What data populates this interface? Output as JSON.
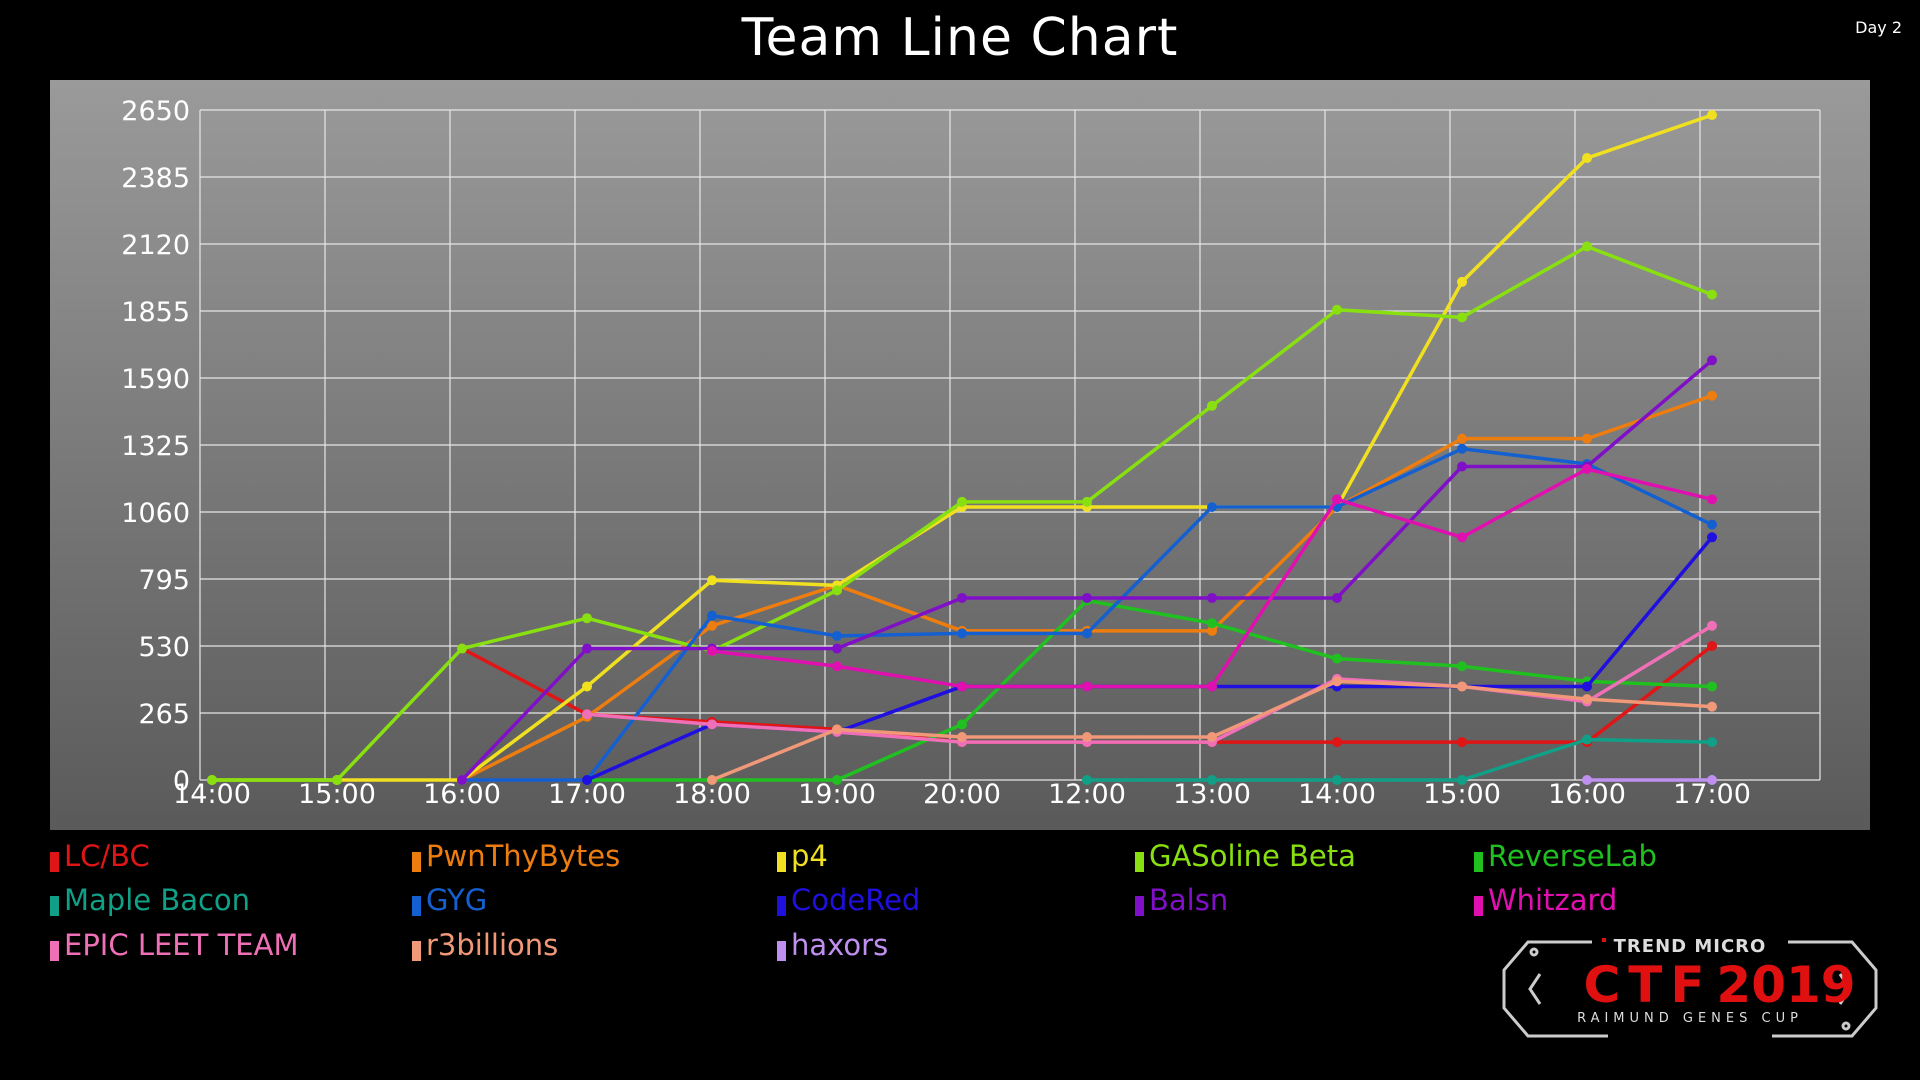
{
  "header": {
    "title": "Team Line Chart",
    "day": "Day 2"
  },
  "logo": {
    "brand": "TREND MICRO",
    "ctf": "CTF",
    "year": "2019",
    "cup": "RAIMUND GENES CUP",
    "colors": {
      "ctf": "#e01010",
      "frame": "#cccccc"
    }
  },
  "chart_data": {
    "type": "line",
    "title": "Team Line Chart",
    "xlabel": "",
    "ylabel": "",
    "categories": [
      "14:00",
      "15:00",
      "16:00",
      "17:00",
      "18:00",
      "19:00",
      "20:00",
      "12:00",
      "13:00",
      "14:00",
      "15:00",
      "16:00",
      "17:00"
    ],
    "yticks": [
      0,
      265,
      530,
      795,
      1060,
      1325,
      1590,
      1855,
      2120,
      2385,
      2650
    ],
    "ylim": [
      0,
      2650
    ],
    "grid": true,
    "legend": "bottom",
    "series": [
      {
        "name": "LC/BC",
        "color": "#e01515",
        "values": [
          null,
          null,
          520,
          260,
          230,
          200,
          150,
          150,
          150,
          150,
          150,
          150,
          530
        ]
      },
      {
        "name": "PwnThyBytes",
        "color": "#ee7d10",
        "values": [
          null,
          null,
          0,
          250,
          610,
          770,
          590,
          590,
          590,
          1080,
          1350,
          1350,
          1520
        ]
      },
      {
        "name": "p4",
        "color": "#f0e020",
        "values": [
          0,
          0,
          0,
          370,
          790,
          770,
          1080,
          1080,
          1080,
          1080,
          1970,
          2460,
          2630
        ]
      },
      {
        "name": "GASoline Beta",
        "color": "#88e010",
        "values": [
          0,
          0,
          520,
          640,
          510,
          750,
          1100,
          1100,
          1480,
          1860,
          1830,
          2110,
          1920
        ]
      },
      {
        "name": "ReverseLab",
        "color": "#20c020",
        "values": [
          null,
          null,
          null,
          0,
          0,
          0,
          220,
          710,
          620,
          480,
          450,
          390,
          370
        ]
      },
      {
        "name": "Maple Bacon",
        "color": "#10a088",
        "values": [
          null,
          null,
          null,
          null,
          null,
          null,
          null,
          0,
          0,
          0,
          0,
          160,
          150
        ]
      },
      {
        "name": "GYG",
        "color": "#1560d0",
        "values": [
          null,
          null,
          0,
          0,
          650,
          570,
          580,
          580,
          1080,
          1080,
          1310,
          1250,
          1010
        ]
      },
      {
        "name": "CodeRed",
        "color": "#2010e0",
        "values": [
          null,
          null,
          null,
          0,
          220,
          190,
          370,
          370,
          370,
          370,
          370,
          370,
          960
        ]
      },
      {
        "name": "Balsn",
        "color": "#8010c8",
        "values": [
          null,
          null,
          0,
          520,
          520,
          520,
          720,
          720,
          720,
          720,
          1240,
          1240,
          1660
        ]
      },
      {
        "name": "Whitzard",
        "color": "#e010b0",
        "values": [
          null,
          null,
          null,
          null,
          510,
          450,
          370,
          370,
          370,
          1110,
          960,
          1230,
          1110
        ]
      },
      {
        "name": "EPIC LEET TEAM",
        "color": "#f070b8",
        "values": [
          null,
          null,
          null,
          260,
          220,
          190,
          150,
          150,
          150,
          400,
          370,
          310,
          610
        ]
      },
      {
        "name": "r3billions",
        "color": "#f09878",
        "values": [
          null,
          null,
          null,
          null,
          0,
          200,
          170,
          170,
          170,
          390,
          370,
          320,
          290
        ]
      },
      {
        "name": "haxors",
        "color": "#c090f0",
        "values": [
          null,
          null,
          null,
          null,
          null,
          null,
          null,
          null,
          null,
          null,
          null,
          0,
          0
        ]
      }
    ]
  }
}
